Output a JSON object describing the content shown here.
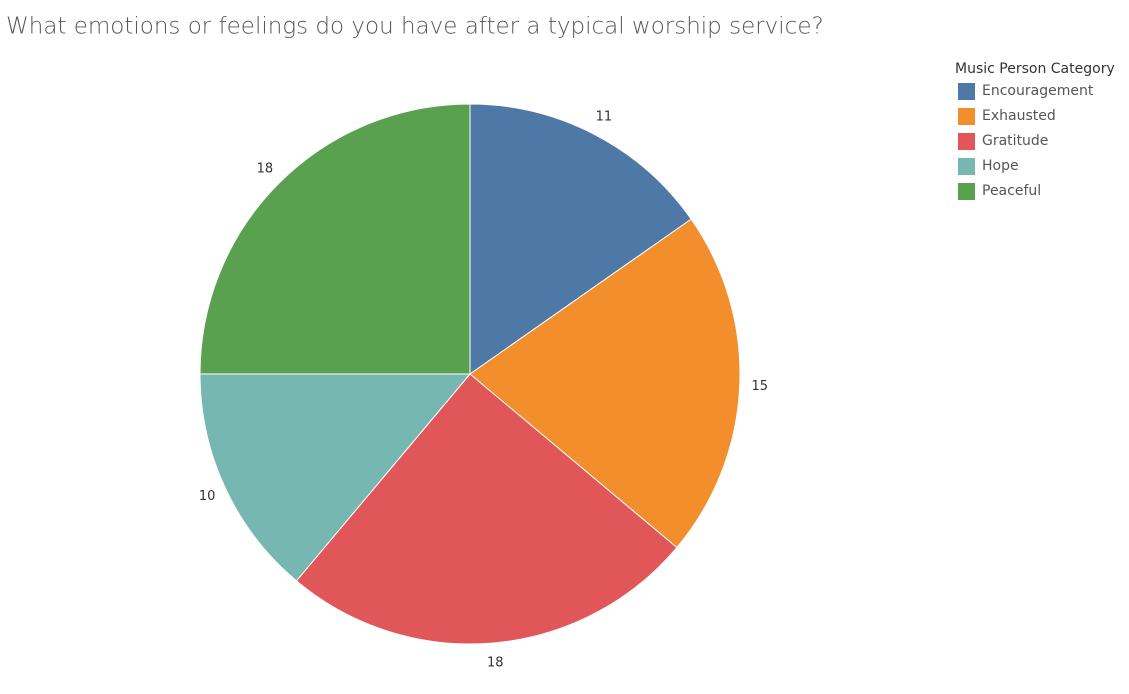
{
  "chart_data": {
    "type": "pie",
    "title": "What emotions or feelings do you have after a typical worship service?",
    "legend_title": "Music Person Category",
    "categories": [
      "Encouragement",
      "Exhausted",
      "Gratitude",
      "Hope",
      "Peaceful"
    ],
    "values": [
      11,
      15,
      18,
      10,
      18
    ],
    "colors": [
      "#4e79a7",
      "#f28e2b",
      "#e15759",
      "#76b7b2",
      "#59a14f"
    ],
    "legend": "top-right"
  }
}
